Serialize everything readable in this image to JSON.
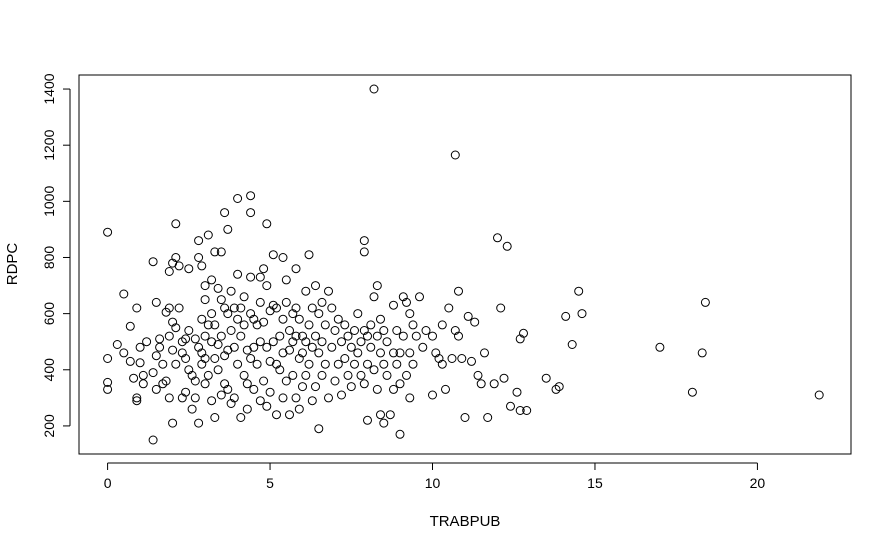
{
  "chart_data": {
    "type": "scatter",
    "title": "",
    "xlabel": "TRABPUB",
    "ylabel": "RDPC",
    "xlim": [
      -0.88,
      22.88
    ],
    "ylim": [
      100,
      1450
    ],
    "xticks": [
      0,
      5,
      10,
      15,
      20
    ],
    "yticks": [
      200,
      400,
      600,
      800,
      1000,
      1200,
      1400
    ],
    "xtick_labels": [
      "0",
      "5",
      "10",
      "15",
      "20"
    ],
    "ytick_labels": [
      "200",
      "400",
      "600",
      "800",
      "1000",
      "1200",
      "1400"
    ],
    "grid": false,
    "legend": "none",
    "marker": "open-circle",
    "point_color": "#000000",
    "points": [
      [
        0,
        890
      ],
      [
        0,
        440
      ],
      [
        0,
        355
      ],
      [
        0,
        330
      ],
      [
        0.3,
        490
      ],
      [
        0.5,
        670
      ],
      [
        0.5,
        460
      ],
      [
        0.7,
        430
      ],
      [
        0.7,
        555
      ],
      [
        0.8,
        370
      ],
      [
        0.9,
        300
      ],
      [
        0.9,
        290
      ],
      [
        0.9,
        620
      ],
      [
        1.0,
        480
      ],
      [
        1.0,
        425
      ],
      [
        1.1,
        350
      ],
      [
        1.1,
        380
      ],
      [
        1.2,
        500
      ],
      [
        1.4,
        150
      ],
      [
        1.4,
        785
      ],
      [
        1.4,
        390
      ],
      [
        1.5,
        640
      ],
      [
        1.5,
        450
      ],
      [
        1.5,
        330
      ],
      [
        1.6,
        510
      ],
      [
        1.6,
        480
      ],
      [
        1.7,
        350
      ],
      [
        1.7,
        420
      ],
      [
        1.8,
        605
      ],
      [
        1.8,
        360
      ],
      [
        1.9,
        750
      ],
      [
        1.9,
        620
      ],
      [
        1.9,
        520
      ],
      [
        1.9,
        300
      ],
      [
        2.0,
        780
      ],
      [
        2.0,
        570
      ],
      [
        2.0,
        470
      ],
      [
        2.0,
        210
      ],
      [
        2.1,
        920
      ],
      [
        2.1,
        800
      ],
      [
        2.1,
        550
      ],
      [
        2.1,
        420
      ],
      [
        2.2,
        770
      ],
      [
        2.2,
        620
      ],
      [
        2.3,
        500
      ],
      [
        2.3,
        460
      ],
      [
        2.3,
        300
      ],
      [
        2.4,
        510
      ],
      [
        2.4,
        440
      ],
      [
        2.4,
        320
      ],
      [
        2.5,
        760
      ],
      [
        2.5,
        540
      ],
      [
        2.5,
        400
      ],
      [
        2.6,
        380
      ],
      [
        2.6,
        260
      ],
      [
        2.7,
        510
      ],
      [
        2.7,
        360
      ],
      [
        2.7,
        300
      ],
      [
        2.8,
        860
      ],
      [
        2.8,
        800
      ],
      [
        2.8,
        480
      ],
      [
        2.8,
        210
      ],
      [
        2.9,
        770
      ],
      [
        2.9,
        580
      ],
      [
        2.9,
        460
      ],
      [
        2.9,
        420
      ],
      [
        3.0,
        700
      ],
      [
        3.0,
        650
      ],
      [
        3.0,
        520
      ],
      [
        3.0,
        440
      ],
      [
        3.0,
        350
      ],
      [
        3.1,
        880
      ],
      [
        3.1,
        560
      ],
      [
        3.1,
        380
      ],
      [
        3.2,
        720
      ],
      [
        3.2,
        600
      ],
      [
        3.2,
        500
      ],
      [
        3.2,
        290
      ],
      [
        3.3,
        820
      ],
      [
        3.3,
        560
      ],
      [
        3.3,
        440
      ],
      [
        3.3,
        230
      ],
      [
        3.4,
        690
      ],
      [
        3.4,
        490
      ],
      [
        3.4,
        400
      ],
      [
        3.5,
        820
      ],
      [
        3.5,
        650
      ],
      [
        3.5,
        520
      ],
      [
        3.5,
        310
      ],
      [
        3.6,
        960
      ],
      [
        3.6,
        620
      ],
      [
        3.6,
        450
      ],
      [
        3.6,
        350
      ],
      [
        3.7,
        900
      ],
      [
        3.7,
        600
      ],
      [
        3.7,
        470
      ],
      [
        3.7,
        330
      ],
      [
        3.8,
        680
      ],
      [
        3.8,
        540
      ],
      [
        3.8,
        280
      ],
      [
        3.9,
        620
      ],
      [
        3.9,
        480
      ],
      [
        3.9,
        300
      ],
      [
        4.0,
        1010
      ],
      [
        4.0,
        740
      ],
      [
        4.0,
        580
      ],
      [
        4.0,
        420
      ],
      [
        4.1,
        620
      ],
      [
        4.1,
        520
      ],
      [
        4.1,
        230
      ],
      [
        4.2,
        660
      ],
      [
        4.2,
        560
      ],
      [
        4.2,
        380
      ],
      [
        4.3,
        470
      ],
      [
        4.3,
        350
      ],
      [
        4.3,
        260
      ],
      [
        4.4,
        1020
      ],
      [
        4.4,
        960
      ],
      [
        4.4,
        730
      ],
      [
        4.4,
        600
      ],
      [
        4.4,
        440
      ],
      [
        4.5,
        580
      ],
      [
        4.5,
        480
      ],
      [
        4.5,
        330
      ],
      [
        4.6,
        560
      ],
      [
        4.6,
        420
      ],
      [
        4.7,
        730
      ],
      [
        4.7,
        640
      ],
      [
        4.7,
        500
      ],
      [
        4.7,
        290
      ],
      [
        4.8,
        760
      ],
      [
        4.8,
        570
      ],
      [
        4.8,
        360
      ],
      [
        4.9,
        920
      ],
      [
        4.9,
        700
      ],
      [
        4.9,
        480
      ],
      [
        4.9,
        270
      ],
      [
        5.0,
        610
      ],
      [
        5.0,
        430
      ],
      [
        5.0,
        320
      ],
      [
        5.1,
        810
      ],
      [
        5.1,
        630
      ],
      [
        5.1,
        500
      ],
      [
        5.2,
        620
      ],
      [
        5.2,
        420
      ],
      [
        5.2,
        240
      ],
      [
        5.3,
        520
      ],
      [
        5.3,
        400
      ],
      [
        5.4,
        800
      ],
      [
        5.4,
        580
      ],
      [
        5.4,
        460
      ],
      [
        5.4,
        300
      ],
      [
        5.5,
        720
      ],
      [
        5.5,
        640
      ],
      [
        5.5,
        360
      ],
      [
        5.6,
        540
      ],
      [
        5.6,
        470
      ],
      [
        5.6,
        240
      ],
      [
        5.7,
        600
      ],
      [
        5.7,
        500
      ],
      [
        5.7,
        380
      ],
      [
        5.8,
        760
      ],
      [
        5.8,
        620
      ],
      [
        5.8,
        520
      ],
      [
        5.8,
        300
      ],
      [
        5.9,
        580
      ],
      [
        5.9,
        440
      ],
      [
        5.9,
        260
      ],
      [
        6.0,
        520
      ],
      [
        6.0,
        460
      ],
      [
        6.0,
        340
      ],
      [
        6.1,
        680
      ],
      [
        6.1,
        500
      ],
      [
        6.1,
        380
      ],
      [
        6.2,
        810
      ],
      [
        6.2,
        560
      ],
      [
        6.2,
        420
      ],
      [
        6.3,
        620
      ],
      [
        6.3,
        480
      ],
      [
        6.3,
        290
      ],
      [
        6.4,
        700
      ],
      [
        6.4,
        520
      ],
      [
        6.4,
        340
      ],
      [
        6.5,
        600
      ],
      [
        6.5,
        460
      ],
      [
        6.5,
        190
      ],
      [
        6.6,
        640
      ],
      [
        6.6,
        500
      ],
      [
        6.6,
        380
      ],
      [
        6.7,
        560
      ],
      [
        6.7,
        420
      ],
      [
        6.8,
        680
      ],
      [
        6.8,
        300
      ],
      [
        6.9,
        620
      ],
      [
        6.9,
        480
      ],
      [
        7.0,
        540
      ],
      [
        7.0,
        360
      ],
      [
        7.1,
        580
      ],
      [
        7.1,
        420
      ],
      [
        7.2,
        500
      ],
      [
        7.2,
        310
      ],
      [
        7.3,
        560
      ],
      [
        7.3,
        440
      ],
      [
        7.4,
        520
      ],
      [
        7.4,
        380
      ],
      [
        7.5,
        480
      ],
      [
        7.5,
        340
      ],
      [
        7.6,
        540
      ],
      [
        7.6,
        420
      ],
      [
        7.7,
        600
      ],
      [
        7.7,
        460
      ],
      [
        7.8,
        500
      ],
      [
        7.8,
        380
      ],
      [
        7.9,
        860
      ],
      [
        7.9,
        820
      ],
      [
        7.9,
        540
      ],
      [
        7.9,
        350
      ],
      [
        8.0,
        520
      ],
      [
        8.0,
        420
      ],
      [
        8.0,
        220
      ],
      [
        8.1,
        560
      ],
      [
        8.1,
        480
      ],
      [
        8.2,
        1400
      ],
      [
        8.2,
        660
      ],
      [
        8.2,
        400
      ],
      [
        8.3,
        700
      ],
      [
        8.3,
        520
      ],
      [
        8.3,
        330
      ],
      [
        8.4,
        580
      ],
      [
        8.4,
        460
      ],
      [
        8.4,
        240
      ],
      [
        8.5,
        540
      ],
      [
        8.5,
        420
      ],
      [
        8.5,
        210
      ],
      [
        8.6,
        500
      ],
      [
        8.6,
        380
      ],
      [
        8.7,
        240
      ],
      [
        8.8,
        630
      ],
      [
        8.8,
        460
      ],
      [
        8.8,
        330
      ],
      [
        8.9,
        540
      ],
      [
        8.9,
        420
      ],
      [
        9.0,
        460
      ],
      [
        9.0,
        350
      ],
      [
        9.0,
        170
      ],
      [
        9.1,
        660
      ],
      [
        9.1,
        520
      ],
      [
        9.2,
        640
      ],
      [
        9.2,
        380
      ],
      [
        9.3,
        600
      ],
      [
        9.3,
        460
      ],
      [
        9.3,
        300
      ],
      [
        9.4,
        560
      ],
      [
        9.4,
        420
      ],
      [
        9.5,
        520
      ],
      [
        9.6,
        660
      ],
      [
        9.7,
        480
      ],
      [
        9.8,
        540
      ],
      [
        10.0,
        520
      ],
      [
        10.0,
        310
      ],
      [
        10.1,
        460
      ],
      [
        10.2,
        440
      ],
      [
        10.3,
        560
      ],
      [
        10.3,
        420
      ],
      [
        10.4,
        330
      ],
      [
        10.5,
        620
      ],
      [
        10.6,
        440
      ],
      [
        10.7,
        1165
      ],
      [
        10.7,
        540
      ],
      [
        10.8,
        680
      ],
      [
        10.8,
        520
      ],
      [
        10.9,
        440
      ],
      [
        11.0,
        230
      ],
      [
        11.1,
        590
      ],
      [
        11.2,
        430
      ],
      [
        11.3,
        570
      ],
      [
        11.4,
        380
      ],
      [
        11.5,
        350
      ],
      [
        11.6,
        460
      ],
      [
        11.7,
        230
      ],
      [
        11.9,
        350
      ],
      [
        12.0,
        870
      ],
      [
        12.1,
        620
      ],
      [
        12.2,
        370
      ],
      [
        12.3,
        840
      ],
      [
        12.4,
        270
      ],
      [
        12.6,
        320
      ],
      [
        12.7,
        510
      ],
      [
        12.7,
        255
      ],
      [
        12.8,
        530
      ],
      [
        12.9,
        255
      ],
      [
        13.5,
        370
      ],
      [
        13.8,
        330
      ],
      [
        13.9,
        340
      ],
      [
        14.1,
        590
      ],
      [
        14.3,
        490
      ],
      [
        14.5,
        680
      ],
      [
        14.6,
        600
      ],
      [
        17.0,
        480
      ],
      [
        18.0,
        320
      ],
      [
        18.3,
        460
      ],
      [
        18.4,
        640
      ],
      [
        21.9,
        310
      ]
    ]
  }
}
